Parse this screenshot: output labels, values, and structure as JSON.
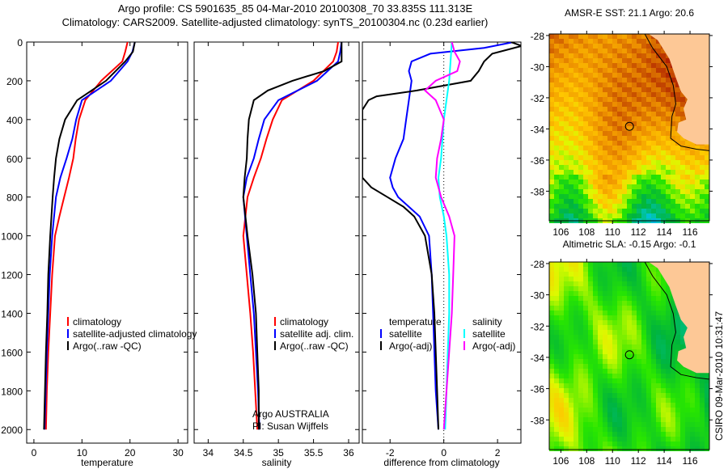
{
  "title_line1": "Argo profile: CS 5901635_85 04-Mar-2010 20100308_70 33.835S 111.313E",
  "title_line2": "Climatology: CARS2009. Satellite-adjusted climatology: synTS_20100304.nc (0.23d earlier)",
  "credit": "Argo AUSTRALIA",
  "pi": "PI: Susan Wijffels",
  "timestamp": "CSIRO 09-Mar-2010 10:31:47",
  "chart_data": [
    {
      "type": "line",
      "xlabel": "temperature",
      "ylabel": "",
      "xlim": [
        -1.5,
        32
      ],
      "ylim": [
        2070,
        0
      ],
      "xticks": [
        "0",
        "10",
        "20",
        "30"
      ],
      "yticks": [
        "0",
        "200",
        "400",
        "600",
        "800",
        "1000",
        "1200",
        "1400",
        "1600",
        "1800",
        "2000"
      ],
      "legend": [
        "climatology",
        "satellite-adjusted climatology",
        "Argo(..raw -QC)"
      ],
      "series": [
        {
          "name": "climatology",
          "color": "#ff0000",
          "depth": [
            0,
            50,
            100,
            200,
            300,
            400,
            500,
            600,
            700,
            800,
            900,
            1000,
            1200,
            1400,
            1600,
            1800,
            2000
          ],
          "values": [
            19.5,
            19,
            18.4,
            14,
            10.7,
            9.4,
            8.7,
            8.2,
            7.3,
            6.3,
            5.3,
            4.4,
            3.8,
            3.4,
            3.0,
            2.7,
            2.5
          ]
        },
        {
          "name": "satellite-adjusted climatology",
          "color": "#0000ff",
          "depth": [
            0,
            50,
            100,
            200,
            300,
            400,
            500,
            600,
            700,
            800,
            1000,
            1200,
            1400,
            1600,
            2000
          ],
          "values": [
            21,
            20.5,
            19.5,
            16,
            10,
            8.8,
            8,
            6.8,
            5.5,
            4.6,
            3.8,
            3.3,
            3,
            2.7,
            2.2
          ]
        },
        {
          "name": "Argo(..raw -QC)",
          "color": "#000000",
          "depth": [
            0,
            50,
            100,
            150,
            200,
            250,
            300,
            400,
            500,
            600,
            700,
            800,
            1000,
            1200,
            1400,
            1600,
            1800,
            2000
          ],
          "values": [
            21,
            20.6,
            19,
            17,
            15,
            12,
            9,
            6.5,
            5.3,
            4.6,
            4.2,
            3.9,
            3.4,
            3.0,
            2.8,
            2.5,
            2.3,
            2.1
          ]
        }
      ]
    },
    {
      "type": "line",
      "xlabel": "salinity",
      "xlim": [
        33.8,
        36.15
      ],
      "ylim": [
        2070,
        0
      ],
      "xticks": [
        "34",
        "34.5",
        "35",
        "35.5",
        "36"
      ],
      "legend": [
        "climatology",
        "satellite adj. clim.",
        "Argo(..raw -QC)"
      ],
      "series": [
        {
          "name": "climatology",
          "color": "#ff0000",
          "depth": [
            0,
            50,
            100,
            200,
            300,
            400,
            500,
            600,
            700,
            800,
            1000,
            1200,
            1400,
            1600,
            1800,
            2000
          ],
          "values": [
            35.85,
            35.83,
            35.78,
            35.5,
            35.05,
            34.92,
            34.83,
            34.75,
            34.65,
            34.56,
            34.5,
            34.55,
            34.6,
            34.64,
            34.67,
            34.7
          ]
        },
        {
          "name": "satellite adj. clim.",
          "color": "#0000ff",
          "depth": [
            0,
            50,
            100,
            200,
            300,
            400,
            500,
            600,
            700,
            800,
            1000,
            1200,
            1400,
            1600,
            1800,
            2000
          ],
          "values": [
            35.9,
            35.88,
            35.85,
            35.55,
            35.0,
            34.8,
            34.72,
            34.65,
            34.55,
            34.5,
            34.55,
            34.6,
            34.65,
            34.68,
            34.71,
            34.73
          ]
        },
        {
          "name": "Argo(..raw -QC)",
          "color": "#000000",
          "depth": [
            0,
            50,
            100,
            150,
            200,
            250,
            300,
            400,
            500,
            600,
            700,
            800,
            1000,
            1200,
            1400,
            1600,
            1800,
            2000
          ],
          "values": [
            35.9,
            35.9,
            35.9,
            35.65,
            35.2,
            34.85,
            34.65,
            34.58,
            34.56,
            34.55,
            34.52,
            34.5,
            34.56,
            34.63,
            34.68,
            34.7,
            34.72,
            34.72
          ]
        }
      ]
    },
    {
      "type": "line",
      "xlabel": "difference from climatology",
      "xlim": [
        -3.03,
        2.87
      ],
      "ylim": [
        2070,
        0
      ],
      "xticks": [
        "-2",
        "0",
        "2"
      ],
      "legend_groups": [
        {
          "title": "temperature",
          "items": [
            "satellite",
            "Argo(-adj)"
          ]
        },
        {
          "title": "salinity",
          "items": [
            "satellite",
            "Argo(-adj)"
          ]
        }
      ],
      "series": [
        {
          "name": "temperature satellite",
          "color": "#0000ff",
          "depth": [
            0,
            30,
            60,
            100,
            150,
            200,
            300,
            400,
            500,
            600,
            700,
            750,
            800,
            900,
            1000,
            1200,
            1400,
            1600,
            1800,
            2000
          ],
          "values": [
            2.6,
            1.5,
            -0.5,
            -1.2,
            -1.3,
            -1.2,
            -1.3,
            -1.4,
            -1.5,
            -1.8,
            -2.0,
            -1.9,
            -1.7,
            -0.9,
            -0.55,
            -0.45,
            -0.4,
            -0.35,
            -0.3,
            -0.2
          ]
        },
        {
          "name": "temperature Argo(-adj)",
          "color": "#000000",
          "depth": [
            0,
            20,
            60,
            100,
            150,
            200,
            250,
            280,
            300,
            350,
            700,
            750,
            800,
            850,
            900,
            1000,
            1200,
            1400,
            1600,
            1800,
            2000
          ],
          "values": [
            2.5,
            2.9,
            1.8,
            1.5,
            1.3,
            1.0,
            -1.0,
            -2.5,
            -2.8,
            -3.03,
            -3.03,
            -2.7,
            -2.1,
            -1.5,
            -1.1,
            -0.7,
            -0.45,
            -0.35,
            -0.3,
            -0.25,
            -0.2
          ]
        },
        {
          "name": "salinity satellite",
          "color": "#00ffff",
          "depth": [
            0,
            100,
            200,
            300,
            400,
            500,
            600,
            700,
            800,
            900,
            1000,
            1200,
            1400,
            1600,
            1800,
            2000
          ],
          "values": [
            0.3,
            0.25,
            0.2,
            0.1,
            0.0,
            -0.05,
            -0.1,
            -0.2,
            -0.15,
            0.0,
            0.1,
            0.2,
            0.2,
            0.15,
            0.1,
            0.05
          ]
        },
        {
          "name": "salinity Argo(-adj)",
          "color": "#ff00ff",
          "depth": [
            0,
            50,
            100,
            150,
            200,
            250,
            300,
            400,
            500,
            600,
            700,
            800,
            900,
            1000,
            1200,
            1400,
            1600,
            1800,
            2000
          ],
          "values": [
            0.3,
            0.4,
            0.6,
            0.5,
            -0.3,
            -0.7,
            -0.3,
            0.0,
            -0.1,
            -0.25,
            -0.3,
            -0.1,
            0.2,
            0.4,
            0.35,
            0.3,
            0.2,
            0.1,
            0.0
          ]
        }
      ]
    },
    {
      "type": "heatmap",
      "title": "AMSR-E SST: 21.1 Argo: 20.6",
      "xlim": [
        105.1,
        117.5
      ],
      "ylim": [
        -39.9,
        -27.9
      ],
      "xticks": [
        "106",
        "108",
        "110",
        "112",
        "114",
        "116"
      ],
      "yticks": [
        "-28",
        "-30",
        "-32",
        "-34",
        "-36",
        "-38"
      ],
      "marker": {
        "lon": 111.313,
        "lat": -33.835
      }
    },
    {
      "type": "heatmap",
      "title": "Altimetric SLA: -0.15 Argo: -0.1",
      "xlim": [
        105.1,
        117.5
      ],
      "ylim": [
        -39.9,
        -27.9
      ],
      "xticks": [
        "106",
        "108",
        "110",
        "112",
        "114",
        "116"
      ],
      "yticks": [
        "-28",
        "-30",
        "-32",
        "-34",
        "-36",
        "-38"
      ],
      "marker": {
        "lon": 111.313,
        "lat": -33.835
      }
    }
  ]
}
